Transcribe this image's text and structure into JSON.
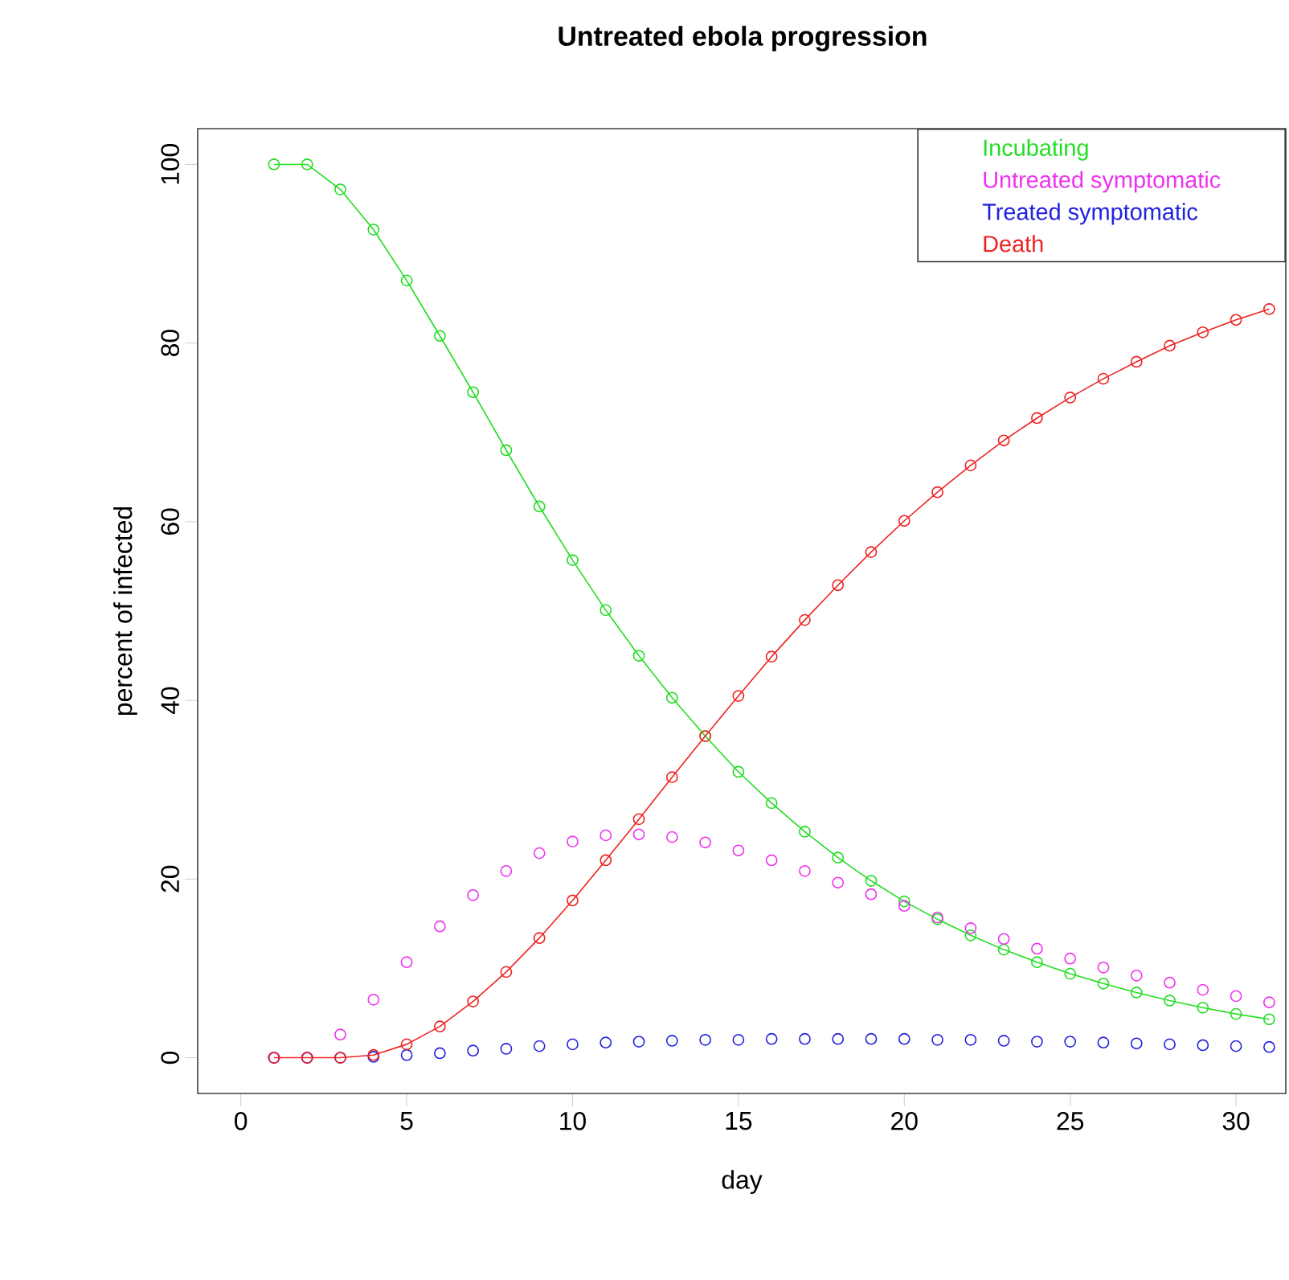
{
  "chart_data": {
    "type": "line",
    "title": "Untreated ebola progression",
    "xlabel": "day",
    "ylabel": "percent of infected",
    "x": [
      1,
      2,
      3,
      4,
      5,
      6,
      7,
      8,
      9,
      10,
      11,
      12,
      13,
      14,
      15,
      16,
      17,
      18,
      19,
      20,
      21,
      22,
      23,
      24,
      25,
      26,
      27,
      28,
      29,
      30,
      31
    ],
    "series": [
      {
        "name": "Incubating",
        "color": "#22dd22",
        "values": [
          100,
          100,
          97.2,
          92.7,
          87,
          80.8,
          74.5,
          68,
          61.7,
          55.7,
          50.1,
          45,
          40.3,
          36,
          32,
          28.5,
          25.3,
          22.4,
          19.8,
          17.5,
          15.5,
          13.7,
          12.1,
          10.7,
          9.4,
          8.3,
          7.3,
          6.4,
          5.6,
          4.9,
          4.3
        ]
      },
      {
        "name": "Untreated symptomatic",
        "type": "scatter",
        "color": "#ee33ee",
        "values": [
          0,
          0,
          2.6,
          6.5,
          10.7,
          14.7,
          18.2,
          20.9,
          22.9,
          24.2,
          24.9,
          25,
          24.7,
          24.1,
          23.2,
          22.1,
          20.9,
          19.6,
          18.3,
          17,
          15.7,
          14.5,
          13.3,
          12.2,
          11.1,
          10.1,
          9.2,
          8.4,
          7.6,
          6.9,
          6.2
        ]
      },
      {
        "name": "Treated symptomatic",
        "type": "scatter",
        "color": "#2222dd",
        "values": [
          0,
          0,
          0,
          0.1,
          0.3,
          0.5,
          0.8,
          1,
          1.3,
          1.5,
          1.7,
          1.8,
          1.9,
          2,
          2,
          2.1,
          2.1,
          2.1,
          2.1,
          2.1,
          2,
          2,
          1.9,
          1.8,
          1.8,
          1.7,
          1.6,
          1.5,
          1.4,
          1.3,
          1.2
        ]
      },
      {
        "name": "Death",
        "color": "#ee2222",
        "values": [
          0,
          0,
          0,
          0.3,
          1.5,
          3.5,
          6.3,
          9.6,
          13.4,
          17.6,
          22.1,
          26.7,
          31.4,
          36,
          40.5,
          44.9,
          49,
          52.9,
          56.6,
          60.1,
          63.3,
          66.3,
          69.1,
          71.6,
          73.9,
          76,
          77.9,
          79.7,
          81.2,
          82.6,
          83.8
        ]
      }
    ],
    "xlim": [
      -1.3,
      31.5
    ],
    "ylim": [
      -4,
      104
    ],
    "xticks": [
      0,
      5,
      10,
      15,
      20,
      25,
      30
    ],
    "yticks": [
      0,
      20,
      40,
      60,
      80,
      100
    ],
    "marker": "circle",
    "legend": "top right",
    "grid": false
  }
}
